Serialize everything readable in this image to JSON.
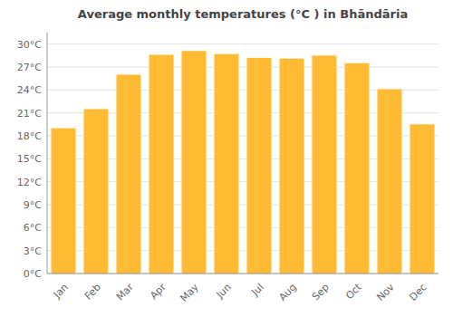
{
  "chart_data": {
    "type": "bar",
    "title": "Average monthly temperatures (°C ) in Bhāndāria",
    "categories": [
      "Jan",
      "Feb",
      "Mar",
      "Apr",
      "May",
      "Jun",
      "Jul",
      "Aug",
      "Sep",
      "Oct",
      "Nov",
      "Dec"
    ],
    "values": [
      19.0,
      21.5,
      26.0,
      28.6,
      29.1,
      28.7,
      28.2,
      28.1,
      28.5,
      27.5,
      24.1,
      19.5
    ],
    "color": "#FFBB33",
    "ylim": [
      0,
      31.5
    ],
    "yticks": [
      {
        "value": 0,
        "label": "0°C"
      },
      {
        "value": 3,
        "label": "3°C"
      },
      {
        "value": 6,
        "label": "6°C"
      },
      {
        "value": 9,
        "label": "9°C"
      },
      {
        "value": 12,
        "label": "12°C"
      },
      {
        "value": 15,
        "label": "15°C"
      },
      {
        "value": 18,
        "label": "18°C"
      },
      {
        "value": 21,
        "label": "21°C"
      },
      {
        "value": 24,
        "label": "24°C"
      },
      {
        "value": 27,
        "label": "27°C"
      },
      {
        "value": 30,
        "label": "30°C"
      }
    ],
    "grid": true
  }
}
